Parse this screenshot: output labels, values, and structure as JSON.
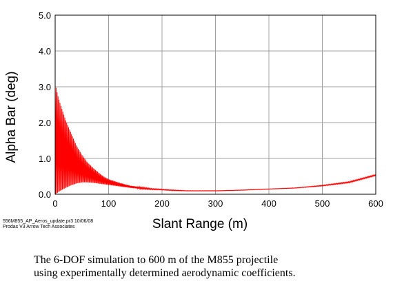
{
  "chart_data": {
    "type": "line",
    "title": "",
    "xlabel": "Slant Range (m)",
    "ylabel": "Alpha Bar (deg)",
    "xlim": [
      0,
      600
    ],
    "ylim": [
      0,
      5
    ],
    "xticks": [
      "0",
      "100",
      "200",
      "300",
      "400",
      "500",
      "600"
    ],
    "yticks": [
      "0.0",
      "1.0",
      "2.0",
      "3.0",
      "4.0",
      "5.0"
    ],
    "grid": true,
    "legend": "none",
    "series": [
      {
        "name": "",
        "color": "#ff0000",
        "style": "oscillating envelope",
        "upper_envelope": {
          "x": [
            0,
            5,
            10,
            20,
            30,
            40,
            50,
            60,
            70,
            80,
            90,
            100,
            120,
            140,
            160,
            180,
            200,
            220,
            250,
            280,
            300,
            350,
            400,
            450,
            500,
            550,
            600
          ],
          "y": [
            3.1,
            2.75,
            2.5,
            2.05,
            1.7,
            1.35,
            1.1,
            0.9,
            0.75,
            0.62,
            0.5,
            0.42,
            0.32,
            0.24,
            0.2,
            0.16,
            0.14,
            0.12,
            0.1,
            0.1,
            0.1,
            0.12,
            0.15,
            0.18,
            0.25,
            0.35,
            0.55
          ]
        },
        "lower_envelope": {
          "x": [
            0,
            5,
            10,
            20,
            30,
            40,
            50,
            60,
            70,
            80,
            90,
            100,
            120,
            140,
            160,
            180,
            200,
            220,
            250,
            280,
            300,
            350,
            400,
            450,
            500,
            550,
            600
          ],
          "y": [
            0.0,
            0.05,
            0.1,
            0.18,
            0.25,
            0.3,
            0.33,
            0.33,
            0.32,
            0.3,
            0.28,
            0.26,
            0.22,
            0.18,
            0.15,
            0.13,
            0.12,
            0.1,
            0.09,
            0.09,
            0.09,
            0.11,
            0.14,
            0.17,
            0.23,
            0.32,
            0.52
          ]
        }
      }
    ]
  },
  "footnote": {
    "line1": "556M855_AP_Aeros_update.pr3   10/06/08",
    "line2": "Prodas V3 Arrow Tech Associates"
  },
  "caption": {
    "line1": "The 6-DOF simulation to 600 m of the M855 projectile",
    "line2": "using experimentally determined aerodynamic coefficients."
  }
}
